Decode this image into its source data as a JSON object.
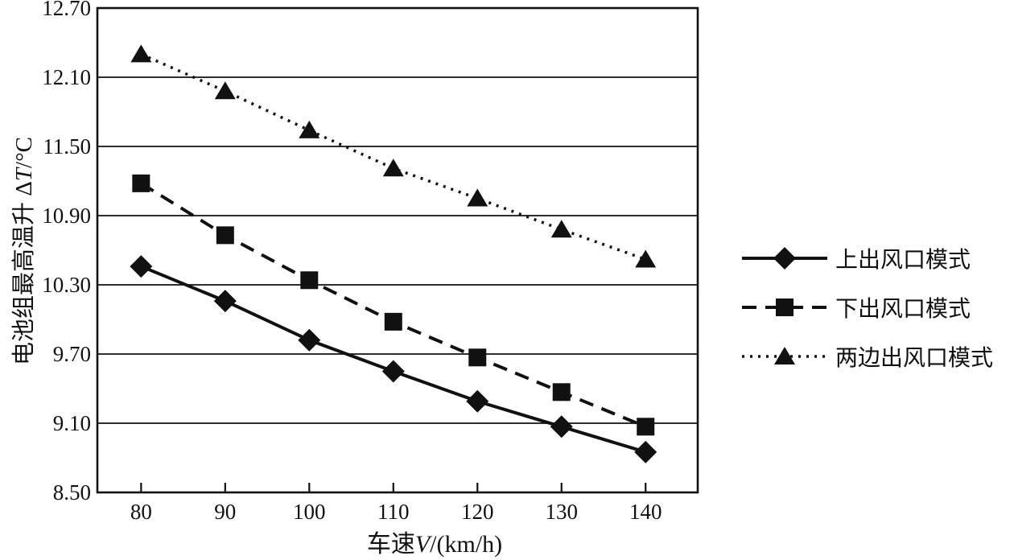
{
  "figure": {
    "background": "#ffffff",
    "ink_color": "#111111"
  },
  "chart_data": {
    "type": "line",
    "title": "",
    "xlabel": "车速V/(km/h)",
    "ylabel": "电池组最高温升 ΔT/°C",
    "xlabel_parts": {
      "prefix": "车速",
      "italic": "V",
      "suffix": "/(km/h)"
    },
    "ylabel_parts": {
      "prefix": "电池组最高温升 Δ",
      "italic": "T",
      "suffix": "/°C"
    },
    "x": [
      80,
      90,
      100,
      110,
      120,
      130,
      140
    ],
    "x_tick_labels": [
      "80",
      "90",
      "100",
      "110",
      "120",
      "130",
      "140"
    ],
    "y_tick_values": [
      12.7,
      12.1,
      11.5,
      10.9,
      10.3,
      9.7,
      9.1,
      8.5
    ],
    "y_tick_labels": [
      "12.70",
      "12.10",
      "11.50",
      "10.90",
      "10.30",
      "9.70",
      "9.10",
      "8.50"
    ],
    "xlim": [
      74.8,
      146.2
    ],
    "ylim": [
      8.5,
      12.7
    ],
    "grid": "horizontal-only",
    "legend_position": "right-outside",
    "series": [
      {
        "name": "上出风口模式",
        "marker": "diamond",
        "line_style": "solid",
        "values": [
          10.46,
          10.16,
          9.82,
          9.55,
          9.29,
          9.07,
          8.85
        ]
      },
      {
        "name": "下出风口模式",
        "marker": "square",
        "line_style": "dashed",
        "values": [
          11.18,
          10.73,
          10.34,
          9.98,
          9.67,
          9.37,
          9.07
        ]
      },
      {
        "name": "两边出风口模式",
        "marker": "triangle",
        "line_style": "dotted",
        "values": [
          12.3,
          11.98,
          11.64,
          11.31,
          11.05,
          10.78,
          10.52
        ]
      }
    ]
  }
}
